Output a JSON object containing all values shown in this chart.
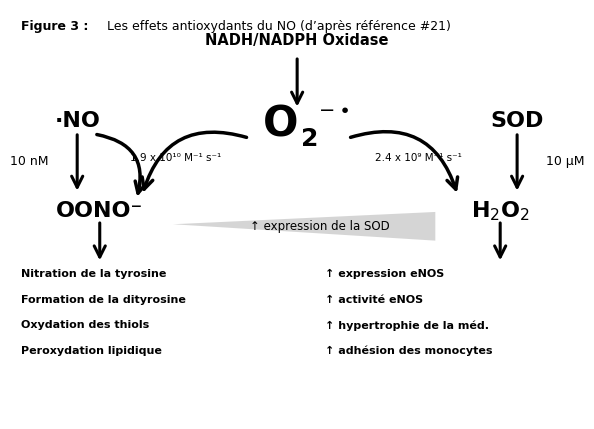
{
  "bg_color": "#ffffff",
  "text_color": "#000000",
  "arrow_color": "#000000",
  "title_bold": "Figure 3 :",
  "title_rest": "  Les effets antioxydants du NO (d’après référence #21)",
  "nadh_label": "NADH/NADPH Oxidase",
  "no_label": "·NO",
  "sod_label": "SOD",
  "oono_label": "OONO⁻",
  "rate_left": "1.9 x 10¹⁰ M⁻¹ s⁻¹",
  "rate_right": "2.4 x 10⁹ M⁻¹ s⁻¹",
  "conc_no": "10 nM",
  "conc_sod": "10 μM",
  "triangle_text": "↑ expression de la SOD",
  "bottom_left": [
    "Nitration de la tyrosine",
    "Formation de la dityrosine",
    "Oxydation des thiols",
    "Peroxydation lipidique"
  ],
  "bottom_right": [
    "↑ expression eNOS",
    "↑ activité eNOS",
    "↑ hypertrophie de la méd.",
    "↑ adhésion des monocytes"
  ]
}
